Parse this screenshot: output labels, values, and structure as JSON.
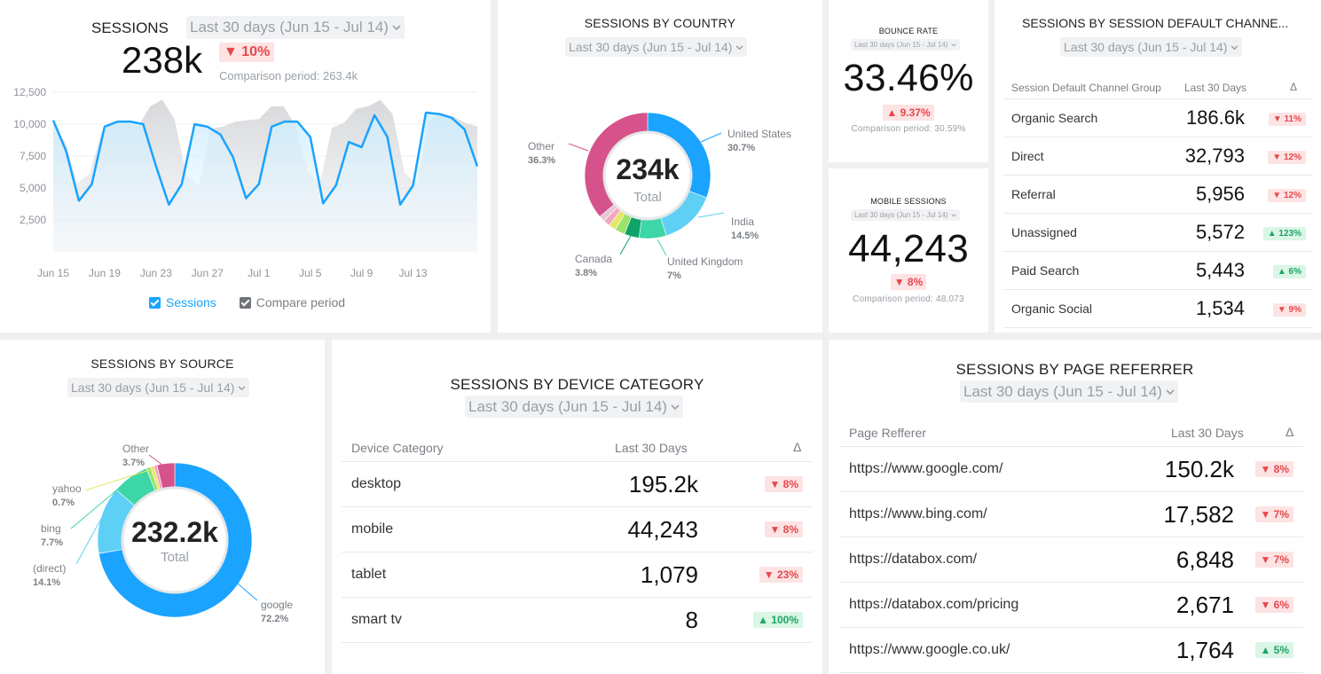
{
  "sessions": {
    "title": "SESSIONS",
    "period": "Last 30 days (Jun 15 - Jul 14)",
    "value": "238k",
    "change": "▼ 10%",
    "comparison": "Comparison period: 263.4k",
    "legend_sessions": "Sessions",
    "legend_compare": "Compare period",
    "chart_data": {
      "type": "line",
      "ylim": [
        0,
        12500
      ],
      "y_ticks": [
        "12,500",
        "10,000",
        "7,500",
        "5,000",
        "2,500"
      ],
      "x_ticks": [
        "Jun 15",
        "Jun 19",
        "Jun 23",
        "Jun 27",
        "Jul 1",
        "Jul 5",
        "Jul 9",
        "Jul 13"
      ],
      "series": [
        {
          "name": "Sessions",
          "values": [
            10300,
            7900,
            4000,
            5300,
            9800,
            10200,
            10200,
            10000,
            6700,
            3700,
            5300,
            10000,
            9800,
            9200,
            7400,
            4200,
            5300,
            9800,
            10200,
            10200,
            9000,
            3800,
            5200,
            8600,
            8200,
            10700,
            9000,
            3700,
            5200,
            10900,
            10800,
            10500,
            9600,
            6700
          ]
        },
        {
          "name": "Compare period",
          "values": [
            9600,
            8600,
            5400,
            6100,
            9400,
            10200,
            10100,
            9800,
            11400,
            11900,
            10400,
            6000,
            5200,
            9600,
            9800,
            10200,
            10300,
            10400,
            11400,
            11400,
            9900,
            6300,
            5300,
            9700,
            10100,
            11200,
            11400,
            11900,
            10800,
            6200,
            5300,
            10200,
            10900,
            10600,
            10100,
            9800
          ]
        }
      ]
    }
  },
  "country": {
    "title": "SESSIONS BY COUNTRY",
    "period": "Last 30 days (Jun 15 - Jul 14)",
    "total": "234k",
    "total_label": "Total",
    "labels": [
      {
        "name": "United States",
        "pct": "30.7%"
      },
      {
        "name": "India",
        "pct": "14.5%"
      },
      {
        "name": "United Kingdom",
        "pct": "7%"
      },
      {
        "name": "Canada",
        "pct": "3.8%"
      },
      {
        "name": "Other",
        "pct": "36.3%"
      }
    ],
    "chart_data": {
      "type": "pie",
      "slices": [
        {
          "name": "United States",
          "value": 30.7,
          "color": "#1aa3ff"
        },
        {
          "name": "India",
          "value": 14.5,
          "color": "#5fd0f5"
        },
        {
          "name": "United Kingdom",
          "value": 7.0,
          "color": "#3dd6a6"
        },
        {
          "name": "Canada",
          "value": 3.8,
          "color": "#0fa36b"
        },
        {
          "name": "",
          "value": 2.6,
          "color": "#9be36b"
        },
        {
          "name": "",
          "value": 1.9,
          "color": "#e6e66a"
        },
        {
          "name": "",
          "value": 1.7,
          "color": "#f4a6c0"
        },
        {
          "name": "",
          "value": 1.5,
          "color": "#e8c6d6"
        },
        {
          "name": "Other",
          "value": 36.3,
          "color": "#d6528a"
        }
      ]
    }
  },
  "bounce": {
    "title": "BOUNCE RATE",
    "period": "Last 30 days (Jun 15 - Jul 14)",
    "value": "33.46%",
    "change": "▲ 9.37%",
    "comparison": "Comparison period: 30.59%"
  },
  "mobile": {
    "title": "MOBILE SESSIONS",
    "period": "Last 30 days (Jun 15 - Jul 14)",
    "value": "44,243",
    "change": "▼ 8%",
    "comparison": "Comparison period: 48,073"
  },
  "channel": {
    "title": "SESSIONS BY SESSION DEFAULT CHANNE...",
    "period": "Last 30 days (Jun 15 - Jul 14)",
    "col1": "Session Default Channel Group",
    "col2": "Last 30 Days",
    "col3": "Δ",
    "rows": [
      {
        "name": "Organic Search",
        "value": "186.6k",
        "change": "▼ 11%",
        "dir": "down"
      },
      {
        "name": "Direct",
        "value": "32,793",
        "change": "▼ 12%",
        "dir": "down"
      },
      {
        "name": "Referral",
        "value": "5,956",
        "change": "▼ 12%",
        "dir": "down"
      },
      {
        "name": "Unassigned",
        "value": "5,572",
        "change": "▲ 123%",
        "dir": "up"
      },
      {
        "name": "Paid Search",
        "value": "5,443",
        "change": "▲ 6%",
        "dir": "up"
      },
      {
        "name": "Organic Social",
        "value": "1,534",
        "change": "▼ 9%",
        "dir": "down"
      }
    ]
  },
  "source": {
    "title": "SESSIONS BY SOURCE",
    "period": "Last 30 days (Jun 15 - Jul 14)",
    "total": "232.2k",
    "total_label": "Total",
    "labels": [
      {
        "name": "Other",
        "pct": "3.7%"
      },
      {
        "name": "yahoo",
        "pct": "0.7%"
      },
      {
        "name": "bing",
        "pct": "7.7%"
      },
      {
        "name": "(direct)",
        "pct": "14.1%"
      },
      {
        "name": "google",
        "pct": "72.2%"
      }
    ],
    "chart_data": {
      "type": "pie",
      "slices": [
        {
          "name": "google",
          "value": 72.2,
          "color": "#1aa3ff"
        },
        {
          "name": "(direct)",
          "value": 14.1,
          "color": "#5fd0f5"
        },
        {
          "name": "bing",
          "value": 7.7,
          "color": "#3dd6a6"
        },
        {
          "name": "",
          "value": 0.9,
          "color": "#9be36b"
        },
        {
          "name": "yahoo",
          "value": 0.7,
          "color": "#e6e66a"
        },
        {
          "name": "",
          "value": 0.7,
          "color": "#f4a6c0"
        },
        {
          "name": "Other",
          "value": 3.7,
          "color": "#d6528a"
        }
      ]
    }
  },
  "device": {
    "title": "SESSIONS BY DEVICE CATEGORY",
    "period": "Last 30 days (Jun 15 - Jul 14)",
    "col1": "Device Category",
    "col2": "Last 30 Days",
    "col3": "Δ",
    "rows": [
      {
        "name": "desktop",
        "value": "195.2k",
        "change": "▼ 8%",
        "dir": "down"
      },
      {
        "name": "mobile",
        "value": "44,243",
        "change": "▼ 8%",
        "dir": "down"
      },
      {
        "name": "tablet",
        "value": "1,079",
        "change": "▼ 23%",
        "dir": "down"
      },
      {
        "name": "smart tv",
        "value": "8",
        "change": "▲ 100%",
        "dir": "up"
      }
    ]
  },
  "referrer": {
    "title": "SESSIONS BY PAGE REFERRER",
    "period": "Last 30 days (Jun 15 - Jul 14)",
    "col1": "Page Refferer",
    "col2": "Last 30 Days",
    "col3": "Δ",
    "rows": [
      {
        "name": "https://www.google.com/",
        "value": "150.2k",
        "change": "▼ 8%",
        "dir": "down"
      },
      {
        "name": "https://www.bing.com/",
        "value": "17,582",
        "change": "▼ 7%",
        "dir": "down"
      },
      {
        "name": "https://databox.com/",
        "value": "6,848",
        "change": "▼ 7%",
        "dir": "down"
      },
      {
        "name": "https://databox.com/pricing",
        "value": "2,671",
        "change": "▼ 6%",
        "dir": "down"
      },
      {
        "name": "https://www.google.co.uk/",
        "value": "1,764",
        "change": "▲ 5%",
        "dir": "up"
      }
    ]
  }
}
